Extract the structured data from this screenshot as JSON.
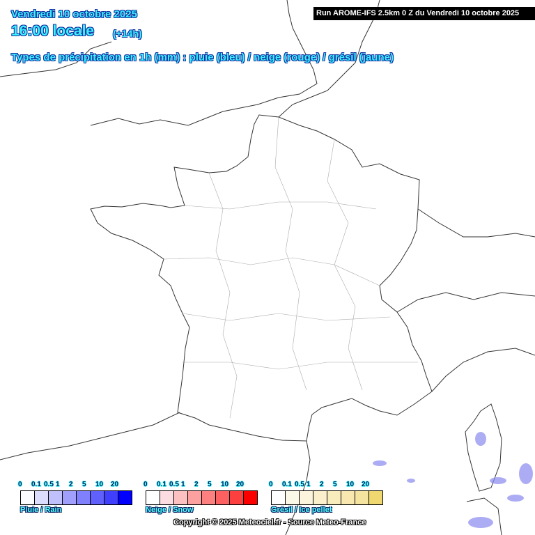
{
  "header": {
    "date": "Vendredi 10 octobre 2025",
    "hour": "16:00 locale",
    "offset": "(+14h)",
    "description": "Types de précipitation en 1h (mm) : pluie (bleu) / neige (rouge) / grésil (jaune)",
    "run": "Run AROME-IFS 2.5km 0 Z du Vendredi 10 octobre 2025"
  },
  "legends": [
    {
      "name": "Pluie / Rain",
      "ticks": [
        "0",
        "0.1",
        "0.5",
        "1",
        "2",
        "5",
        "10",
        "20"
      ],
      "colors": [
        "#fcfcff",
        "#dcdcfc",
        "#c0c0fc",
        "#a0a0fc",
        "#8080fc",
        "#6060fc",
        "#4040fc",
        "#0000fc"
      ]
    },
    {
      "name": "Neige / Snow",
      "ticks": [
        "0",
        "0.1",
        "0.5",
        "1",
        "2",
        "5",
        "10",
        "20"
      ],
      "colors": [
        "#ffffff",
        "#fcdce0",
        "#fcc0c0",
        "#fca0a0",
        "#fc8080",
        "#fc6060",
        "#fc4040",
        "#fc0000"
      ]
    },
    {
      "name": "Grésil / Ice pellet",
      "ticks": [
        "0",
        "0.1",
        "0.5",
        "1",
        "2",
        "5",
        "10",
        "20"
      ],
      "colors": [
        "#ffffff",
        "#fcf8e8",
        "#fcf4dc",
        "#fcf0cc",
        "#f8ecbc",
        "#f8e8b0",
        "#f4e4a0",
        "#f0d870"
      ]
    }
  ],
  "copyright": "Copyright © 2025 Meteociel.fr - Source Meteo-France"
}
